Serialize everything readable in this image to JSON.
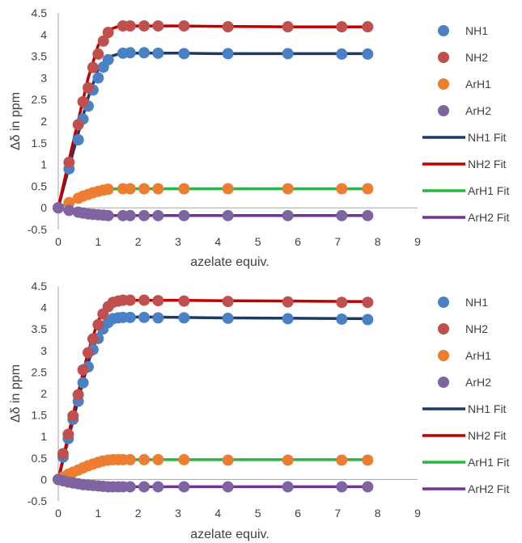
{
  "colors": {
    "NH1": "#4a81c4",
    "NH2": "#c0504d",
    "ArH1": "#ed7d31",
    "ArH2": "#8064a2",
    "NH1 Fit": "#1f3864",
    "NH2 Fit": "#c00000",
    "ArH1 Fit": "#2eb34a",
    "ArH2 Fit": "#7030a0",
    "axis": "#a6a6a6",
    "text": "#404040"
  },
  "chart_data": [
    {
      "type": "scatter",
      "title": "",
      "xlabel": "azelate equiv.",
      "ylabel": "Δδ in ppm",
      "xlim": [
        0,
        9
      ],
      "ylim": [
        -0.5,
        4.5
      ],
      "x_ticks": [
        "0",
        "1",
        "2",
        "3",
        "4",
        "5",
        "6",
        "7",
        "8",
        "9"
      ],
      "y_ticks": [
        "-0.5",
        "0",
        "0.5",
        "1",
        "1.5",
        "2",
        "2.5",
        "3",
        "3.5",
        "4",
        "4.5"
      ],
      "grid": false,
      "legend_position": "right",
      "series": [
        {
          "name": "NH1",
          "kind": "points",
          "x": [
            0,
            0.27,
            0.5,
            0.62,
            0.75,
            0.87,
            1.0,
            1.13,
            1.25,
            1.62,
            1.8,
            2.15,
            2.5,
            3.15,
            4.25,
            5.75,
            7.1,
            7.75
          ],
          "y": [
            0,
            0.9,
            1.57,
            2.05,
            2.35,
            2.72,
            3.0,
            3.25,
            3.42,
            3.57,
            3.58,
            3.58,
            3.57,
            3.56,
            3.56,
            3.56,
            3.55,
            3.55
          ]
        },
        {
          "name": "NH2",
          "kind": "points",
          "x": [
            0,
            0.27,
            0.5,
            0.62,
            0.75,
            0.87,
            1.0,
            1.13,
            1.25,
            1.62,
            1.8,
            2.15,
            2.5,
            3.15,
            4.25,
            5.75,
            7.1,
            7.75
          ],
          "y": [
            0,
            1.05,
            1.92,
            2.45,
            2.77,
            3.24,
            3.55,
            3.85,
            4.05,
            4.2,
            4.2,
            4.2,
            4.2,
            4.2,
            4.18,
            4.18,
            4.18,
            4.18
          ]
        },
        {
          "name": "ArH1",
          "kind": "points",
          "x": [
            0,
            0.27,
            0.5,
            0.62,
            0.75,
            0.87,
            1.0,
            1.13,
            1.25,
            1.62,
            1.8,
            2.15,
            2.5,
            3.15,
            4.25,
            5.75,
            7.1,
            7.75
          ],
          "y": [
            0,
            0.12,
            0.22,
            0.27,
            0.31,
            0.35,
            0.38,
            0.41,
            0.43,
            0.44,
            0.44,
            0.44,
            0.44,
            0.44,
            0.44,
            0.44,
            0.44,
            0.44
          ]
        },
        {
          "name": "ArH2",
          "kind": "points",
          "x": [
            0,
            0.27,
            0.5,
            0.62,
            0.75,
            0.87,
            1.0,
            1.13,
            1.25,
            1.62,
            1.8,
            2.15,
            2.5,
            3.15,
            4.25,
            5.75,
            7.1,
            7.75
          ],
          "y": [
            0,
            -0.06,
            -0.1,
            -0.12,
            -0.14,
            -0.15,
            -0.16,
            -0.17,
            -0.18,
            -0.18,
            -0.18,
            -0.18,
            -0.18,
            -0.18,
            -0.18,
            -0.18,
            -0.18,
            -0.18
          ]
        },
        {
          "name": "NH1 Fit",
          "kind": "line",
          "x": [
            0,
            0.25,
            0.5,
            0.75,
            1.0,
            1.25,
            1.5,
            2.0,
            3.0,
            4.0,
            6.0,
            7.75
          ],
          "y": [
            0,
            0.87,
            1.72,
            2.55,
            3.2,
            3.48,
            3.55,
            3.57,
            3.57,
            3.56,
            3.56,
            3.56
          ]
        },
        {
          "name": "NH2 Fit",
          "kind": "line",
          "x": [
            0,
            0.25,
            0.5,
            0.75,
            1.0,
            1.25,
            1.5,
            2.0,
            3.0,
            4.0,
            6.0,
            7.75
          ],
          "y": [
            0,
            1.02,
            2.02,
            3.0,
            3.75,
            4.1,
            4.19,
            4.2,
            4.2,
            4.19,
            4.18,
            4.18
          ]
        },
        {
          "name": "ArH1 Fit",
          "kind": "line",
          "x": [
            0,
            0.25,
            0.5,
            0.75,
            1.0,
            1.25,
            1.5,
            2.0,
            3.0,
            4.0,
            6.0,
            7.75
          ],
          "y": [
            0,
            0.11,
            0.21,
            0.31,
            0.39,
            0.43,
            0.44,
            0.44,
            0.44,
            0.44,
            0.44,
            0.44
          ]
        },
        {
          "name": "ArH2 Fit",
          "kind": "line",
          "x": [
            0,
            0.25,
            0.5,
            0.75,
            1.0,
            1.25,
            1.5,
            2.0,
            3.0,
            4.0,
            6.0,
            7.75
          ],
          "y": [
            0,
            -0.05,
            -0.09,
            -0.13,
            -0.16,
            -0.18,
            -0.18,
            -0.18,
            -0.18,
            -0.18,
            -0.18,
            -0.18
          ]
        }
      ]
    },
    {
      "type": "scatter",
      "title": "",
      "xlabel": "azelate equiv.",
      "ylabel": "Δδ in ppm",
      "xlim": [
        0,
        9
      ],
      "ylim": [
        -0.5,
        4.5
      ],
      "x_ticks": [
        "0",
        "1",
        "2",
        "3",
        "4",
        "5",
        "6",
        "7",
        "8",
        "9"
      ],
      "y_ticks": [
        "-0.5",
        "0",
        "0.5",
        "1",
        "1.5",
        "2",
        "2.5",
        "3",
        "3.5",
        "4",
        "4.5"
      ],
      "grid": false,
      "legend_position": "right",
      "series": [
        {
          "name": "NH1",
          "kind": "points",
          "x": [
            0,
            0.12,
            0.25,
            0.37,
            0.5,
            0.62,
            0.75,
            0.87,
            1.0,
            1.12,
            1.25,
            1.37,
            1.5,
            1.62,
            1.8,
            2.15,
            2.5,
            3.15,
            4.25,
            5.75,
            7.1,
            7.75
          ],
          "y": [
            0,
            0.52,
            0.95,
            1.4,
            1.82,
            2.25,
            2.62,
            3.02,
            3.28,
            3.5,
            3.65,
            3.74,
            3.76,
            3.77,
            3.77,
            3.77,
            3.76,
            3.76,
            3.75,
            3.74,
            3.73,
            3.72
          ]
        },
        {
          "name": "NH2",
          "kind": "points",
          "x": [
            0,
            0.12,
            0.25,
            0.37,
            0.5,
            0.62,
            0.75,
            0.87,
            1.0,
            1.12,
            1.25,
            1.37,
            1.5,
            1.62,
            1.8,
            2.15,
            2.5,
            3.15,
            4.25,
            5.75,
            7.1,
            7.75
          ],
          "y": [
            0,
            0.6,
            1.05,
            1.48,
            1.97,
            2.55,
            2.95,
            3.27,
            3.6,
            3.85,
            4.02,
            4.12,
            4.15,
            4.17,
            4.17,
            4.17,
            4.16,
            4.15,
            4.14,
            4.13,
            4.12,
            4.12
          ]
        },
        {
          "name": "ArH1",
          "kind": "points",
          "x": [
            0,
            0.12,
            0.25,
            0.37,
            0.5,
            0.62,
            0.75,
            0.87,
            1.0,
            1.12,
            1.25,
            1.37,
            1.5,
            1.62,
            1.8,
            2.15,
            2.5,
            3.15,
            4.25,
            5.75,
            7.1,
            7.75
          ],
          "y": [
            0,
            0.06,
            0.12,
            0.17,
            0.22,
            0.27,
            0.32,
            0.36,
            0.4,
            0.43,
            0.45,
            0.46,
            0.46,
            0.46,
            0.46,
            0.46,
            0.46,
            0.46,
            0.45,
            0.45,
            0.45,
            0.45
          ]
        },
        {
          "name": "ArH2",
          "kind": "points",
          "x": [
            0,
            0.12,
            0.25,
            0.37,
            0.5,
            0.62,
            0.75,
            0.87,
            1.0,
            1.12,
            1.25,
            1.37,
            1.5,
            1.62,
            1.8,
            2.15,
            2.5,
            3.15,
            4.25,
            5.75,
            7.1,
            7.75
          ],
          "y": [
            0,
            -0.03,
            -0.06,
            -0.08,
            -0.1,
            -0.12,
            -0.13,
            -0.14,
            -0.15,
            -0.16,
            -0.17,
            -0.17,
            -0.17,
            -0.17,
            -0.17,
            -0.17,
            -0.17,
            -0.17,
            -0.17,
            -0.17,
            -0.17,
            -0.17
          ]
        },
        {
          "name": "NH1 Fit",
          "kind": "line",
          "x": [
            0,
            0.25,
            0.5,
            0.75,
            1.0,
            1.25,
            1.5,
            2.0,
            3.0,
            4.0,
            6.0,
            7.75
          ],
          "y": [
            0,
            0.93,
            1.85,
            2.72,
            3.38,
            3.67,
            3.76,
            3.78,
            3.77,
            3.76,
            3.75,
            3.74
          ]
        },
        {
          "name": "NH2 Fit",
          "kind": "line",
          "x": [
            0,
            0.25,
            0.5,
            0.75,
            1.0,
            1.25,
            1.5,
            2.0,
            3.0,
            4.0,
            6.0,
            7.75
          ],
          "y": [
            0,
            1.02,
            2.02,
            2.98,
            3.7,
            4.05,
            4.15,
            4.17,
            4.17,
            4.16,
            4.15,
            4.14
          ]
        },
        {
          "name": "ArH1 Fit",
          "kind": "line",
          "x": [
            0,
            0.25,
            0.5,
            0.75,
            1.0,
            1.25,
            1.5,
            2.0,
            3.0,
            4.0,
            6.0,
            7.75
          ],
          "y": [
            0,
            0.12,
            0.23,
            0.33,
            0.41,
            0.45,
            0.46,
            0.46,
            0.46,
            0.46,
            0.46,
            0.46
          ]
        },
        {
          "name": "ArH2 Fit",
          "kind": "line",
          "x": [
            0,
            0.25,
            0.5,
            0.75,
            1.0,
            1.25,
            1.5,
            2.0,
            3.0,
            4.0,
            6.0,
            7.75
          ],
          "y": [
            0,
            -0.05,
            -0.09,
            -0.12,
            -0.15,
            -0.17,
            -0.17,
            -0.17,
            -0.17,
            -0.17,
            -0.17,
            -0.17
          ]
        }
      ]
    }
  ]
}
